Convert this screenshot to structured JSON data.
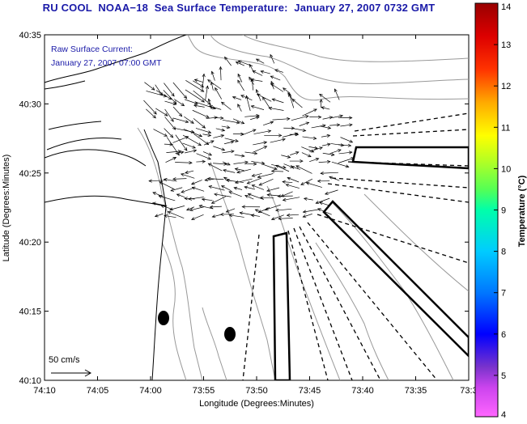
{
  "title": "RU COOL  NOAA−18  Sea Surface Temperature:  January 27, 2007 0732 GMT",
  "annotation": {
    "line1": "Raw Surface Current:",
    "line2": "January 27, 2007 07:00 GMT"
  },
  "scale_label": "50 cm/s",
  "axes": {
    "xlabel": "Longitude (Degrees:Minutes)",
    "ylabel": "Latitude (Degrees:Minutes)",
    "xticks": [
      "74:10",
      "74:05",
      "74:00",
      "73:55",
      "73:50",
      "73:45",
      "73:40",
      "73:35",
      "73:3"
    ],
    "yticks": [
      "40:10",
      "40:15",
      "40:20",
      "40:25",
      "40:30",
      "40:35"
    ]
  },
  "colorbar": {
    "label": "Temperature (°C)",
    "min": 4,
    "max": 14,
    "ticks": [
      "4",
      "5",
      "6",
      "7",
      "8",
      "9",
      "10",
      "11",
      "12",
      "13",
      "14"
    ]
  },
  "map_features": {
    "coastline": "New Jersey / Long Island shoreline",
    "current_vectors": "surface current arrows over New York Bight apex",
    "markers": "2 black ellipse markers"
  }
}
